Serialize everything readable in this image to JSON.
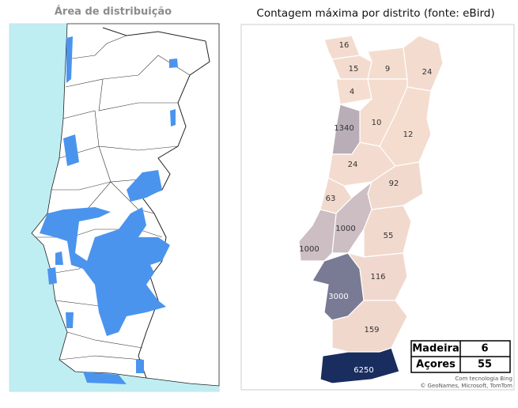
{
  "left_panel": {
    "title": "Área de distribuição"
  },
  "right_panel": {
    "title": "Contagem máxima por distrito (fonte: eBird)",
    "district_counts": [
      16,
      15,
      9,
      24,
      4,
      10,
      1340,
      12,
      24,
      92,
      63,
      1000,
      55,
      1000,
      3000,
      116,
      159,
      6250
    ],
    "islands": [
      {
        "name": "Madeira",
        "value": 6
      },
      {
        "name": "Açores",
        "value": 55
      }
    ],
    "attribution": [
      "Com tecnologia Bing",
      "© GeoNames, Microsoft, TomTom"
    ]
  }
}
